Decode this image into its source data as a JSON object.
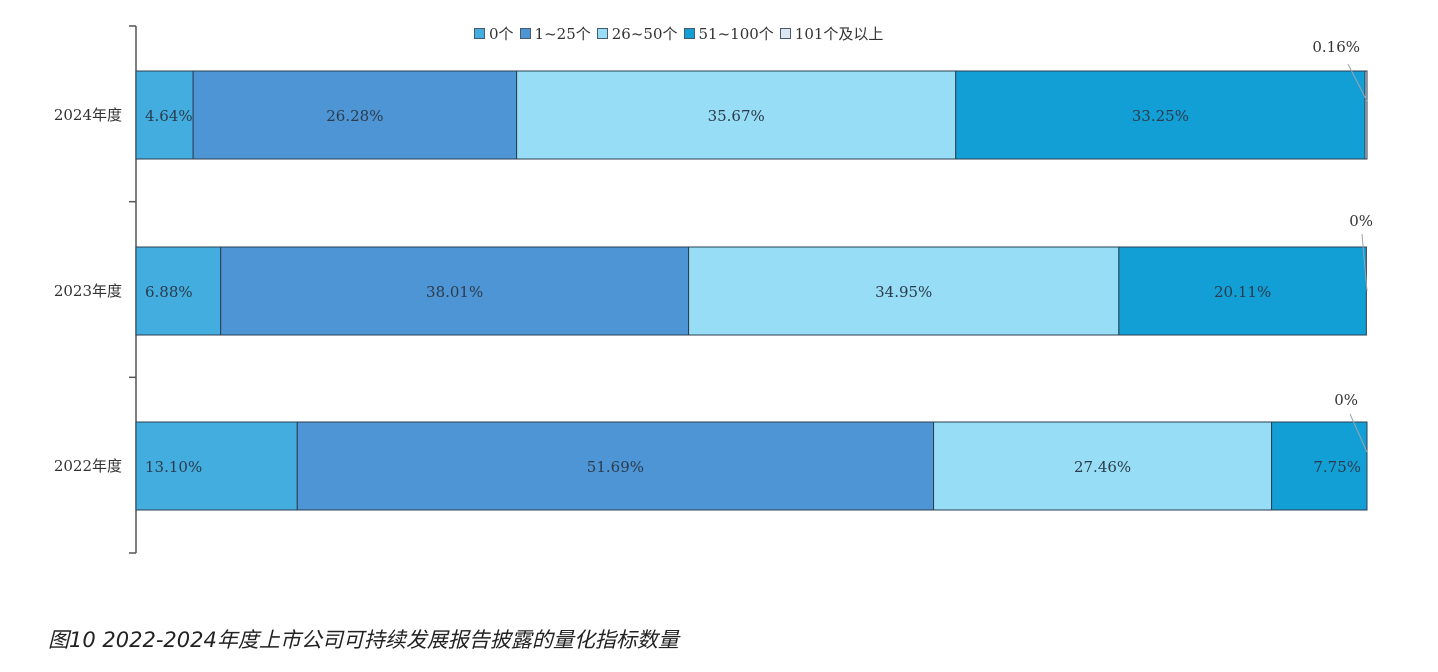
{
  "chart_data": {
    "type": "bar",
    "orientation": "horizontal",
    "stacked": true,
    "percent": true,
    "categories": [
      "2024年度",
      "2023年度",
      "2022年度"
    ],
    "series": [
      {
        "name": "0个",
        "color": "#43ade0",
        "values": [
          4.64,
          6.88,
          13.1
        ],
        "labels": [
          "4.64%",
          "6.88%",
          "13.10%"
        ]
      },
      {
        "name": "1~25个",
        "color": "#4e95d6",
        "values": [
          26.28,
          38.01,
          51.69
        ],
        "labels": [
          "26.28%",
          "38.01%",
          "51.69%"
        ]
      },
      {
        "name": "26~50个",
        "color": "#97ddf6",
        "values": [
          35.67,
          34.95,
          27.46
        ],
        "labels": [
          "35.67%",
          "34.95%",
          "27.46%"
        ]
      },
      {
        "name": "51~100个",
        "color": "#129fd6",
        "values": [
          33.25,
          20.11,
          7.75
        ],
        "labels": [
          "33.25%",
          "20.11%",
          "7.75%"
        ]
      },
      {
        "name": "101个及以上",
        "color": "#dbe6f3",
        "values": [
          0.16,
          0,
          0
        ],
        "labels": [
          "0.16%",
          "0%",
          "0%"
        ]
      }
    ],
    "xlim": [
      0,
      100
    ],
    "legend": "top",
    "grid": false
  },
  "caption": "图10 2022-2024年度上市公司可持续发展报告披露的量化指标数量"
}
